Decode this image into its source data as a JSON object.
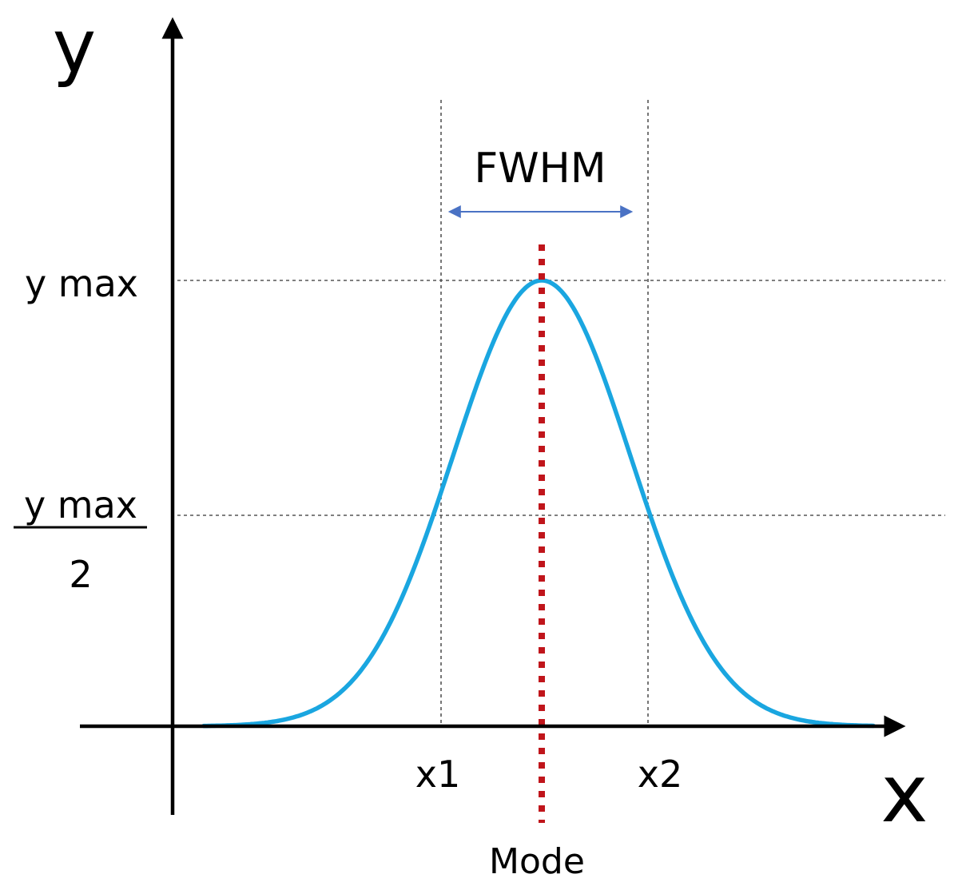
{
  "axes": {
    "y_label": "y",
    "x_label": "x"
  },
  "labels": {
    "y_max": "y max",
    "half_numerator": "y max",
    "half_denominator": "2",
    "x1": "x1",
    "x2": "x2",
    "mode": "Mode",
    "fwhm": "FWHM"
  },
  "colors": {
    "curve": "#1aa6e0",
    "mode_line": "#c0151b",
    "fwhm_arrow": "#4a72c4",
    "axis": "#000000",
    "guide": "#555555"
  }
}
